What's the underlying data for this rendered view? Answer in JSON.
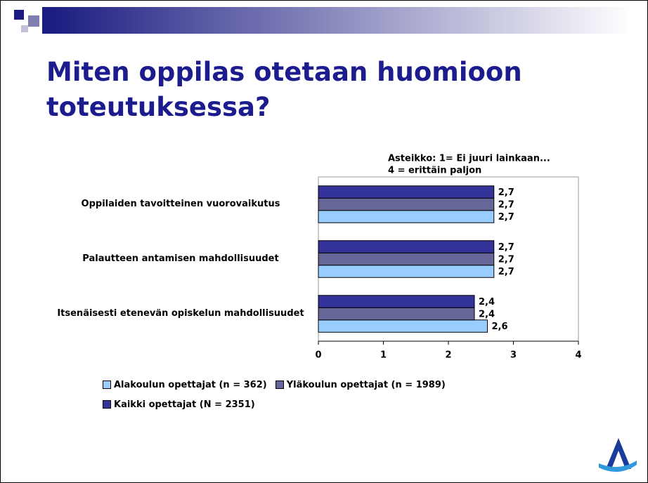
{
  "chart_data": {
    "type": "barh",
    "title": "Miten oppilas otetaan huomioon toteutuksessa?",
    "annotation": [
      "Asteikko: 1= Ei juuri lainkaan...",
      "4 = erittäin paljon"
    ],
    "categories": [
      "Oppilaiden tavoitteinen vuorovaikutus",
      "Palautteen antamisen mahdollisuudet",
      "Itsenäisesti etenevän opiskelun mahdollisuudet"
    ],
    "series": [
      {
        "name": "Alakoulun opettajat (n = 362)",
        "color": "#99ccff",
        "values": [
          2.7,
          2.7,
          2.6
        ],
        "value_labels": [
          "2,7",
          "2,7",
          "2,6"
        ]
      },
      {
        "name": "Yläkoulun opettajat (n = 1989)",
        "color": "#666699",
        "values": [
          2.7,
          2.7,
          2.4
        ],
        "value_labels": [
          "2,7",
          "2,7",
          "2,4"
        ]
      },
      {
        "name": "Kaikki opettajat (N = 2351)",
        "color": "#333399",
        "values": [
          2.7,
          2.7,
          2.4
        ],
        "value_labels": [
          "2,7",
          "2,7",
          "2,4"
        ]
      }
    ],
    "xlim": [
      0,
      4
    ],
    "xticks": [
      0,
      1,
      2,
      3,
      4
    ]
  }
}
